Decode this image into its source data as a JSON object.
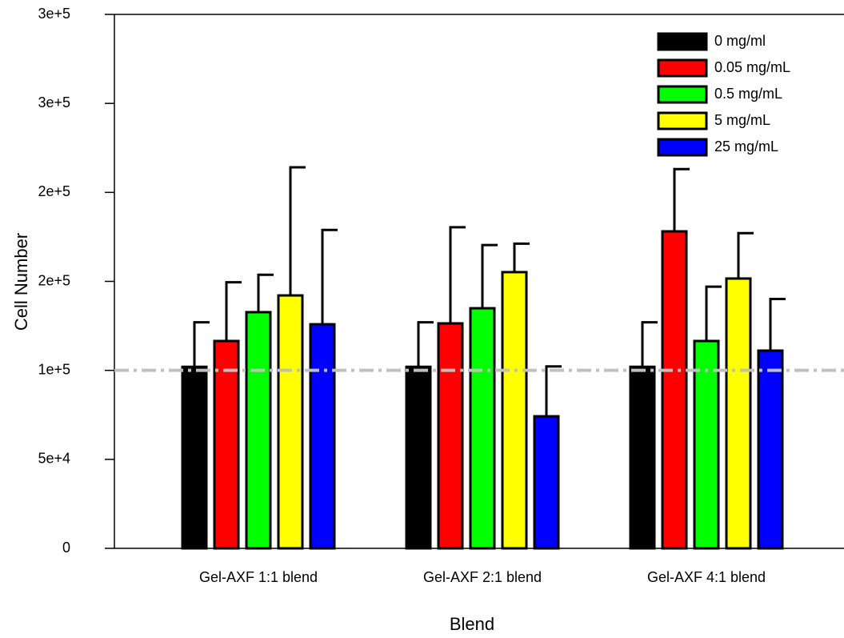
{
  "chart_data": {
    "type": "bar",
    "x_label": "Blend",
    "y_label": "Cell Number",
    "categories": [
      "Gel-AXF 1:1 blend",
      "Gel-AXF 2:1 blend",
      "Gel-AXF 4:1 blend"
    ],
    "series": [
      {
        "name": "0 mg/ml",
        "color": "#000000",
        "values": [
          102000,
          102000,
          102000
        ],
        "errors": [
          25000,
          25000,
          25000
        ]
      },
      {
        "name": "0.05 mg/mL",
        "color": "#ff0000",
        "values": [
          116500,
          126400,
          178100
        ],
        "errors": [
          33000,
          54000,
          35000
        ]
      },
      {
        "name": "0.5 mg/mL",
        "color": "#00ff00",
        "values": [
          132700,
          134900,
          116500
        ],
        "errors": [
          21000,
          35500,
          30500
        ]
      },
      {
        "name": "5 mg/mL",
        "color": "#ffff00",
        "values": [
          142100,
          155200,
          151600
        ],
        "errors": [
          72000,
          16000,
          25500
        ]
      },
      {
        "name": "25 mg/mL",
        "color": "#0000ff",
        "values": [
          125900,
          74200,
          111100
        ],
        "errors": [
          53000,
          28000,
          29000
        ]
      }
    ],
    "ylim": [
      0,
      300000
    ],
    "yticks": [
      0,
      {
        "value": 50000,
        "label": "5e+4"
      },
      {
        "value": 100000,
        "label": "1e+5"
      },
      {
        "value": 150000,
        "label": "2e+5"
      },
      {
        "value": 200000,
        "label": "2e+5"
      },
      {
        "value": 250000,
        "label": "3e+5"
      },
      {
        "value": 300000,
        "label": "3e+5"
      }
    ],
    "reference_line": 100000,
    "reference_color": "#c0c0c0",
    "legend": "upper right"
  }
}
